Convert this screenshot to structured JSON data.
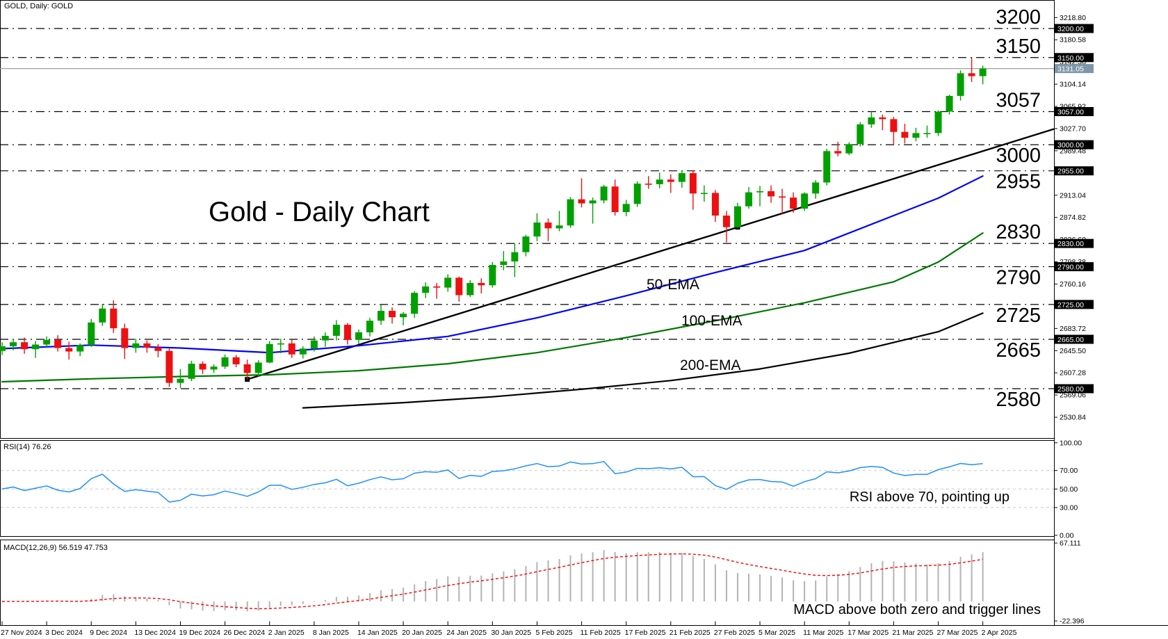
{
  "window": {
    "symbol_label": "GOLD, Daily:  GOLD"
  },
  "colors": {
    "bull": "#00a000",
    "bear": "#ee1010",
    "ema50": "#0000ff",
    "ema100": "#007800",
    "ema200": "#000000",
    "trendline": "#000000",
    "grid": "#000000",
    "panel_border": "#000000",
    "price_line": "#a0a0a0",
    "badge_bg": "#000000",
    "badge_text": "#ffffff",
    "current_badge_bg": "#7e97a9",
    "rsi_line": "#1e90ff",
    "rsi_grid": "#c8c8c8",
    "macd_bar": "#b3b3b3",
    "macd_signal": "#ff0000"
  },
  "chart_data": {
    "type": "candlestick",
    "symbol": "GOLD",
    "timeframe": "Daily",
    "title": "Gold - Daily Chart",
    "current_price": "3131.05",
    "current_price_value": 3131.05,
    "x_axis": {
      "ticks_every_n_candles": 4,
      "tick_labels": [
        "27 Nov 2024",
        "3 Dec 2024",
        "9 Dec 2024",
        "13 Dec 2024",
        "19 Dec 2024",
        "26 Dec 2024",
        "2 Jan 2025",
        "8 Jan 2025",
        "14 Jan 2025",
        "20 Jan 2025",
        "24 Jan 2025",
        "30 Jan 2025",
        "5 Feb 2025",
        "11 Feb 2025",
        "17 Feb 2025",
        "21 Feb 2025",
        "27 Feb 2025",
        "5 Mar 2025",
        "11 Mar 2025",
        "17 Mar 2025",
        "21 Mar 2025",
        "27 Mar 2025",
        "2 Apr 2025"
      ]
    },
    "y_axis": {
      "scale_ticks": [
        3218.8,
        3180.58,
        3142.36,
        3104.14,
        3065.92,
        3027.7,
        2989.48,
        2913.04,
        2874.82,
        2836.6,
        2798.38,
        2760.16,
        2683.72,
        2645.5,
        2607.28,
        2569.06,
        2530.84
      ],
      "badges": [
        {
          "price": 3200,
          "label": "3200.00"
        },
        {
          "price": 3150,
          "label": "3150.00"
        },
        {
          "price": 3131.05,
          "label": "3131.05",
          "current": true
        },
        {
          "price": 3057,
          "label": "3057.00"
        },
        {
          "price": 3000,
          "label": "3000.00"
        },
        {
          "price": 2955,
          "label": "2955.00"
        },
        {
          "price": 2830,
          "label": "2830.00"
        },
        {
          "price": 2790,
          "label": "2790.00"
        },
        {
          "price": 2725,
          "label": "2725.00"
        },
        {
          "price": 2665,
          "label": "2665.00"
        },
        {
          "price": 2580,
          "label": "2580.00"
        }
      ]
    },
    "levels": [
      {
        "price": 3200,
        "label": "3200",
        "label_side": "above"
      },
      {
        "price": 3150,
        "label": "3150",
        "label_side": "above"
      },
      {
        "price": 3057,
        "label": "3057",
        "label_side": "above"
      },
      {
        "price": 3000,
        "label": "3000",
        "label_side": "below"
      },
      {
        "price": 2955,
        "label": "2955",
        "label_side": "below"
      },
      {
        "price": 2830,
        "label": "2830",
        "label_side": "above"
      },
      {
        "price": 2790,
        "label": "2790",
        "label_side": "below"
      },
      {
        "price": 2725,
        "label": "2725",
        "label_side": "below"
      },
      {
        "price": 2665,
        "label": "2665",
        "label_side": "below"
      },
      {
        "price": 2580,
        "label": "2580",
        "label_side": "below"
      }
    ],
    "candles_ohlc": [
      [
        2645,
        2660,
        2638,
        2653
      ],
      [
        2653,
        2666,
        2646,
        2660
      ],
      [
        2660,
        2668,
        2640,
        2648
      ],
      [
        2648,
        2662,
        2633,
        2656
      ],
      [
        2656,
        2670,
        2650,
        2664
      ],
      [
        2664,
        2672,
        2644,
        2650
      ],
      [
        2650,
        2661,
        2630,
        2644
      ],
      [
        2644,
        2658,
        2636,
        2655
      ],
      [
        2655,
        2700,
        2652,
        2694
      ],
      [
        2694,
        2726,
        2688,
        2718
      ],
      [
        2718,
        2732,
        2676,
        2684
      ],
      [
        2684,
        2692,
        2631,
        2650
      ],
      [
        2650,
        2666,
        2642,
        2658
      ],
      [
        2658,
        2663,
        2642,
        2651
      ],
      [
        2651,
        2657,
        2634,
        2645
      ],
      [
        2645,
        2649,
        2583,
        2590
      ],
      [
        2590,
        2614,
        2581,
        2597
      ],
      [
        2597,
        2628,
        2593,
        2623
      ],
      [
        2623,
        2627,
        2605,
        2613
      ],
      [
        2613,
        2622,
        2607,
        2618
      ],
      [
        2618,
        2639,
        2614,
        2634
      ],
      [
        2634,
        2638,
        2617,
        2622
      ],
      [
        2622,
        2630,
        2596,
        2607
      ],
      [
        2607,
        2629,
        2601,
        2625
      ],
      [
        2625,
        2662,
        2624,
        2657
      ],
      [
        2657,
        2666,
        2641,
        2658
      ],
      [
        2658,
        2664,
        2633,
        2639
      ],
      [
        2639,
        2653,
        2632,
        2649
      ],
      [
        2649,
        2670,
        2644,
        2663
      ],
      [
        2663,
        2677,
        2652,
        2671
      ],
      [
        2671,
        2698,
        2663,
        2690
      ],
      [
        2690,
        2693,
        2656,
        2664
      ],
      [
        2664,
        2682,
        2657,
        2677
      ],
      [
        2677,
        2702,
        2670,
        2697
      ],
      [
        2697,
        2725,
        2690,
        2714
      ],
      [
        2714,
        2720,
        2692,
        2703
      ],
      [
        2703,
        2712,
        2689,
        2709
      ],
      [
        2709,
        2748,
        2702,
        2745
      ],
      [
        2745,
        2763,
        2736,
        2756
      ],
      [
        2756,
        2762,
        2735,
        2754
      ],
      [
        2754,
        2777,
        2747,
        2771
      ],
      [
        2771,
        2773,
        2730,
        2741
      ],
      [
        2741,
        2767,
        2738,
        2762
      ],
      [
        2762,
        2770,
        2744,
        2758
      ],
      [
        2758,
        2798,
        2754,
        2793
      ],
      [
        2793,
        2817,
        2784,
        2799
      ],
      [
        2799,
        2830,
        2772,
        2815
      ],
      [
        2815,
        2845,
        2808,
        2842
      ],
      [
        2842,
        2882,
        2834,
        2866
      ],
      [
        2866,
        2873,
        2834,
        2856
      ],
      [
        2856,
        2886,
        2851,
        2861
      ],
      [
        2861,
        2910,
        2857,
        2906
      ],
      [
        2906,
        2942,
        2892,
        2899
      ],
      [
        2899,
        2909,
        2864,
        2904
      ],
      [
        2904,
        2931,
        2899,
        2928
      ],
      [
        2928,
        2940,
        2878,
        2884
      ],
      [
        2884,
        2905,
        2877,
        2898
      ],
      [
        2898,
        2937,
        2893,
        2933
      ],
      [
        2933,
        2946,
        2924,
        2932
      ],
      [
        2932,
        2952,
        2925,
        2940
      ],
      [
        2940,
        2949,
        2917,
        2936
      ],
      [
        2936,
        2956,
        2926,
        2951
      ],
      [
        2951,
        2955,
        2888,
        2916
      ],
      [
        2916,
        2930,
        2902,
        2917
      ],
      [
        2917,
        2922,
        2867,
        2878
      ],
      [
        2878,
        2886,
        2832,
        2858
      ],
      [
        2858,
        2900,
        2857,
        2894
      ],
      [
        2894,
        2927,
        2890,
        2918
      ],
      [
        2918,
        2929,
        2894,
        2920
      ],
      [
        2920,
        2930,
        2900,
        2911
      ],
      [
        2911,
        2924,
        2880,
        2909
      ],
      [
        2909,
        2918,
        2883,
        2890
      ],
      [
        2890,
        2918,
        2886,
        2916
      ],
      [
        2916,
        2939,
        2907,
        2935
      ],
      [
        2935,
        2993,
        2930,
        2989
      ],
      [
        2989,
        3005,
        2980,
        2985
      ],
      [
        2985,
        3004,
        2982,
        3001
      ],
      [
        3001,
        3039,
        2997,
        3035
      ],
      [
        3035,
        3057,
        3029,
        3047
      ],
      [
        3047,
        3052,
        3025,
        3044
      ],
      [
        3044,
        3048,
        3000,
        3022
      ],
      [
        3022,
        3036,
        3002,
        3012
      ],
      [
        3012,
        3029,
        3006,
        3020
      ],
      [
        3020,
        3033,
        3012,
        3020
      ],
      [
        3020,
        3059,
        3015,
        3057
      ],
      [
        3057,
        3086,
        3052,
        3084
      ],
      [
        3084,
        3128,
        3076,
        3123
      ],
      [
        3123,
        3150,
        3108,
        3118
      ],
      [
        3118,
        3136,
        3104,
        3131.05
      ]
    ],
    "emas": {
      "ema50": {
        "label": "50-EMA",
        "points": [
          [
            0,
            2649
          ],
          [
            8,
            2655
          ],
          [
            16,
            2650
          ],
          [
            24,
            2642
          ],
          [
            32,
            2654
          ],
          [
            40,
            2670
          ],
          [
            48,
            2702
          ],
          [
            56,
            2740
          ],
          [
            64,
            2780
          ],
          [
            72,
            2818
          ],
          [
            80,
            2878
          ],
          [
            84,
            2908
          ],
          [
            88,
            2946
          ]
        ]
      },
      "ema100": {
        "label": "100-EMA",
        "points": [
          [
            0,
            2592
          ],
          [
            8,
            2597
          ],
          [
            16,
            2601
          ],
          [
            24,
            2604
          ],
          [
            32,
            2611
          ],
          [
            40,
            2623
          ],
          [
            48,
            2642
          ],
          [
            56,
            2668
          ],
          [
            64,
            2697
          ],
          [
            72,
            2728
          ],
          [
            80,
            2764
          ],
          [
            84,
            2798
          ],
          [
            88,
            2848
          ]
        ]
      },
      "ema200": {
        "label": "200-EMA",
        "points": [
          [
            27,
            2547
          ],
          [
            36,
            2556
          ],
          [
            44,
            2566
          ],
          [
            52,
            2579
          ],
          [
            60,
            2594
          ],
          [
            68,
            2614
          ],
          [
            76,
            2641
          ],
          [
            84,
            2678
          ],
          [
            88,
            2710
          ]
        ]
      }
    },
    "trendline": {
      "anchors": [
        {
          "i": 22,
          "price": 2596
        },
        {
          "i": 66,
          "price": 2858
        }
      ],
      "extend_to_price": 3027
    },
    "rsi": {
      "label": "RSI(14) 76.26",
      "period": 14,
      "current_value": 76.26,
      "scale_labels": [
        "100.00",
        "70.00",
        "50.00",
        "30.00",
        "0.00"
      ],
      "scale_values": [
        100,
        70,
        50,
        30,
        0
      ],
      "dashed_levels": [
        70,
        50,
        30
      ],
      "annotation": "RSI above 70, pointing up"
    },
    "macd": {
      "label": "MACD(12,26,9) 56.519 47.753",
      "fast": 12,
      "slow": 26,
      "signal": 9,
      "current_macd": 56.519,
      "current_signal": 47.753,
      "scale_max_label": "67.111",
      "scale_min_label": "-22.396",
      "scale_max": 67.111,
      "scale_min": -22.396,
      "annotation": "MACD above both zero and trigger lines"
    }
  }
}
